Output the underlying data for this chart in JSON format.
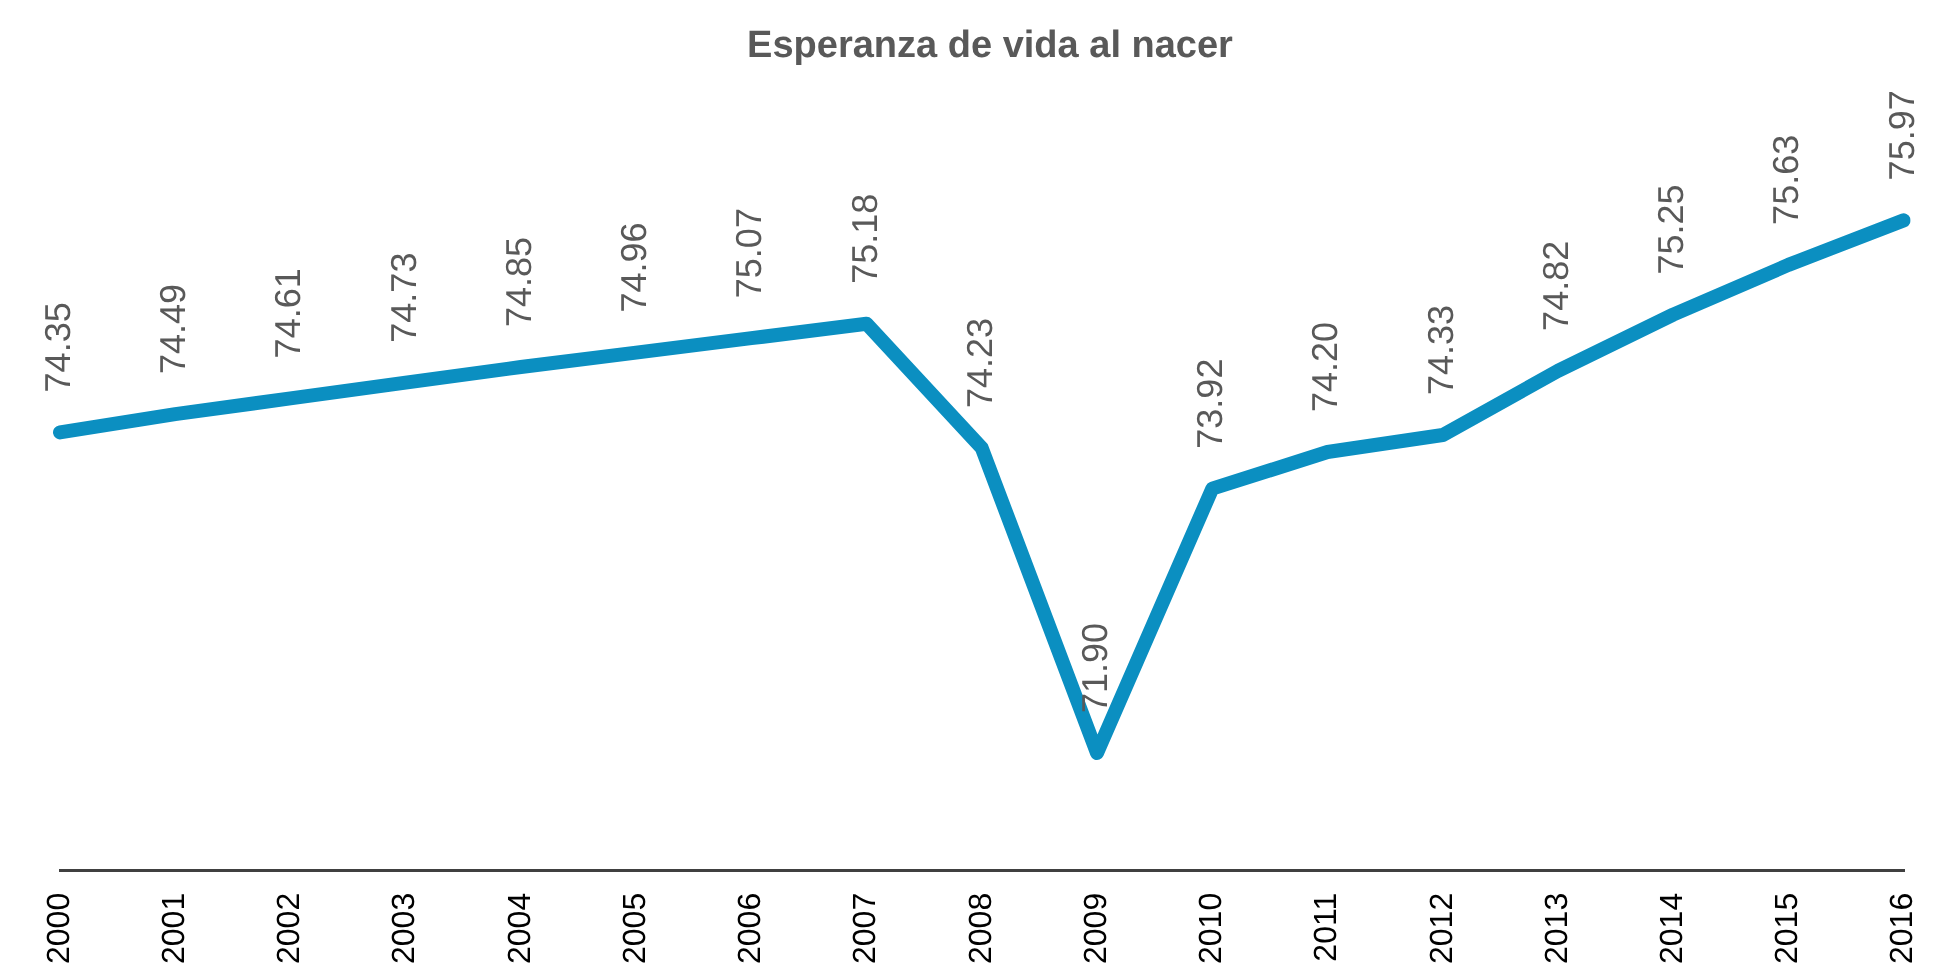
{
  "chart_data": {
    "type": "line",
    "title": "Esperanza de vida al nacer",
    "categories": [
      "2000",
      "2001",
      "2002",
      "2003",
      "2004",
      "2005",
      "2006",
      "2007",
      "2008",
      "2009",
      "2010",
      "2011",
      "2012",
      "2013",
      "2014",
      "2015",
      "2016"
    ],
    "series": [
      {
        "color": "#0b8fc1",
        "values": [
          74.35,
          74.49,
          74.61,
          74.73,
          74.85,
          74.96,
          75.07,
          75.18,
          74.23,
          71.9,
          73.92,
          74.2,
          74.33,
          74.82,
          75.25,
          75.63,
          75.97
        ],
        "value_labels": [
          "74.35",
          "74.49",
          "74.61",
          "74.73",
          "74.85",
          "74.96",
          "75.07",
          "75.18",
          "74.23",
          "71.90",
          "73.92",
          "74.20",
          "74.33",
          "74.82",
          "75.25",
          "75.63",
          "75.97"
        ]
      }
    ],
    "grid": false,
    "legend": false,
    "marker": "none",
    "line_style": "solid",
    "tick_labels": "x"
  }
}
